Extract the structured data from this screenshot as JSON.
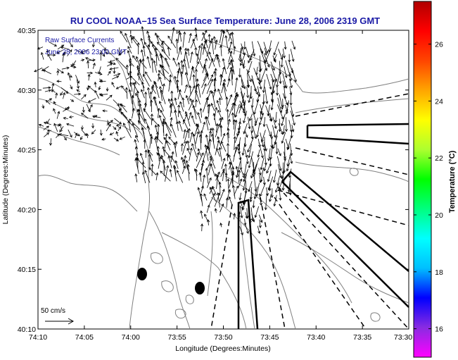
{
  "title": "RU COOL  NOAA–15  Sea Surface Temperature:  June 28, 2006 2319 GMT",
  "legend": {
    "line1": "Raw Surface Currents",
    "line2": "June 28, 2006 23:00 GMT"
  },
  "axes": {
    "xlabel": "Longitude (Degrees:Minutes)",
    "ylabel": "Latitude (Degrees:Minutes)",
    "x_ticks": [
      "74:10",
      "74:05",
      "74:00",
      "73:55",
      "73:50",
      "73:45",
      "73:40",
      "73:35",
      "73:30"
    ],
    "y_ticks": [
      "40:35",
      "40:30",
      "40:25",
      "40:20",
      "40:15",
      "40:10"
    ],
    "x_range_minutes_west": [
      10,
      -30
    ],
    "y_range_minutes": [
      10,
      35
    ]
  },
  "colorbar": {
    "label": "Temperature (°C)",
    "ticks": [
      "26",
      "24",
      "22",
      "20",
      "18",
      "16"
    ],
    "range": [
      15,
      27.5
    ],
    "colormap": [
      "#ff00ff",
      "#8a2be2",
      "#0000ff",
      "#00bfff",
      "#00ffff",
      "#00ff7f",
      "#00ff00",
      "#adff2f",
      "#ffff00",
      "#ffa500",
      "#ff4500",
      "#ff0000",
      "#b00000"
    ]
  },
  "scale": {
    "label": "50 cm/s"
  },
  "colors": {
    "title": "#1a1aa6",
    "land_outline": "#808080",
    "vectors": "#000000"
  },
  "features": {
    "buoys": 2,
    "vector_field": "surface current arrows concentrated over Lower New York Bay approaches",
    "shipping_lanes": "solid and dashed outlines radiating from harbor entrance"
  }
}
